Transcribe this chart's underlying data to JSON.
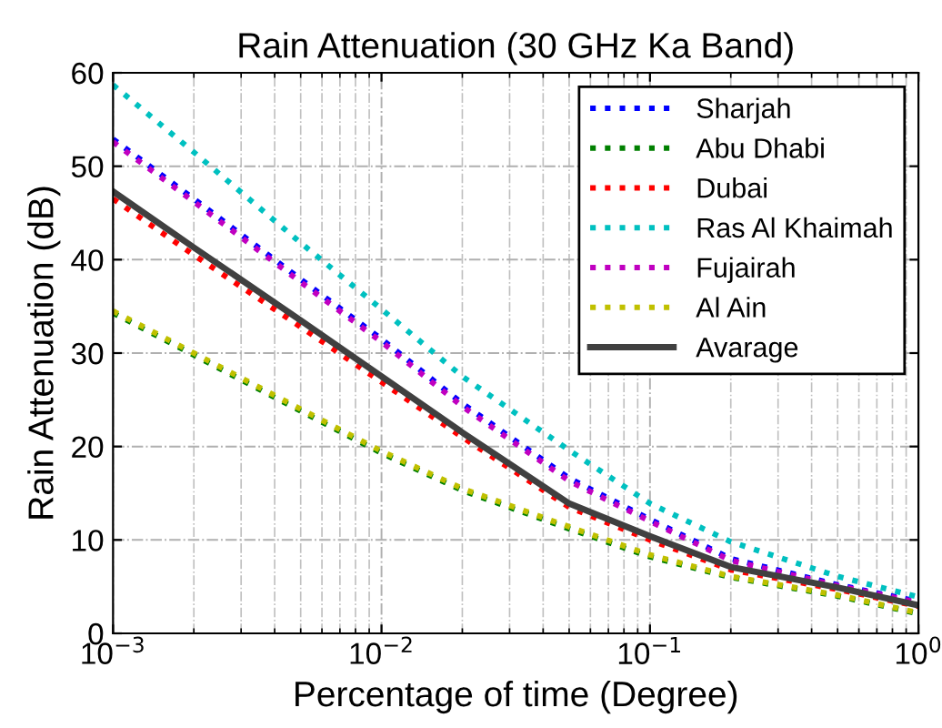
{
  "chart_data": {
    "type": "line",
    "title": "Rain Attenuation (30 GHz Ka Band)",
    "xlabel": "Percentage of time (Degree)",
    "ylabel": "Rain Attenuation (dB)",
    "x": [
      0.001,
      0.002,
      0.005,
      0.01,
      0.02,
      0.05,
      0.1,
      0.2,
      0.5,
      1
    ],
    "series": [
      {
        "name": "Sharjah",
        "color": "#0000ff",
        "line_style": "dotted",
        "values": [
          52.9,
          46.5,
          37.9,
          31.5,
          24.6,
          16.6,
          12.2,
          8.0,
          5.2,
          3.4
        ]
      },
      {
        "name": "Abu Dhabi",
        "color": "#008000",
        "line_style": "dotted",
        "values": [
          34.3,
          29.8,
          23.8,
          19.3,
          15.3,
          11.2,
          8.2,
          6.0,
          4.0,
          2.1
        ]
      },
      {
        "name": "Dubai",
        "color": "#ff0000",
        "line_style": "dotted",
        "values": [
          46.5,
          40.5,
          32.8,
          26.9,
          21.0,
          13.5,
          10.0,
          6.8,
          4.7,
          2.9
        ]
      },
      {
        "name": "Ras Al Khaimah",
        "color": "#00c0c0",
        "line_style": "dotted",
        "values": [
          58.7,
          51.5,
          41.8,
          34.7,
          27.5,
          19.6,
          13.9,
          9.8,
          6.1,
          3.9
        ]
      },
      {
        "name": "Fujairah",
        "color": "#c000c0",
        "line_style": "dotted",
        "values": [
          52.6,
          46.2,
          37.6,
          31.2,
          24.3,
          16.3,
          12.0,
          7.8,
          5.1,
          3.3
        ]
      },
      {
        "name": "Al Ain",
        "color": "#c0c000",
        "line_style": "dotted",
        "values": [
          34.5,
          30.0,
          24.0,
          19.5,
          15.5,
          11.4,
          8.4,
          6.1,
          4.1,
          2.2
        ]
      },
      {
        "name": "Avarage",
        "color": "#404040",
        "line_style": "solid",
        "values": [
          47.3,
          41.3,
          33.5,
          27.5,
          21.5,
          13.9,
          10.4,
          7.1,
          4.9,
          3.0
        ]
      }
    ],
    "log": "x",
    "xlim": [
      0.001,
      1
    ],
    "xticks": [
      {
        "value": 0.001,
        "label": "10$^{−3}$"
      },
      {
        "value": 0.01,
        "label": "10$^{−2}$"
      },
      {
        "value": 0.1,
        "label": "10$^{−1}$"
      },
      {
        "value": 1,
        "label": "10$^{0}$"
      }
    ],
    "ylim": [
      0,
      60
    ],
    "yticks": [
      0,
      10,
      20,
      30,
      40,
      50,
      60
    ],
    "grid": true,
    "legend": "top right"
  }
}
